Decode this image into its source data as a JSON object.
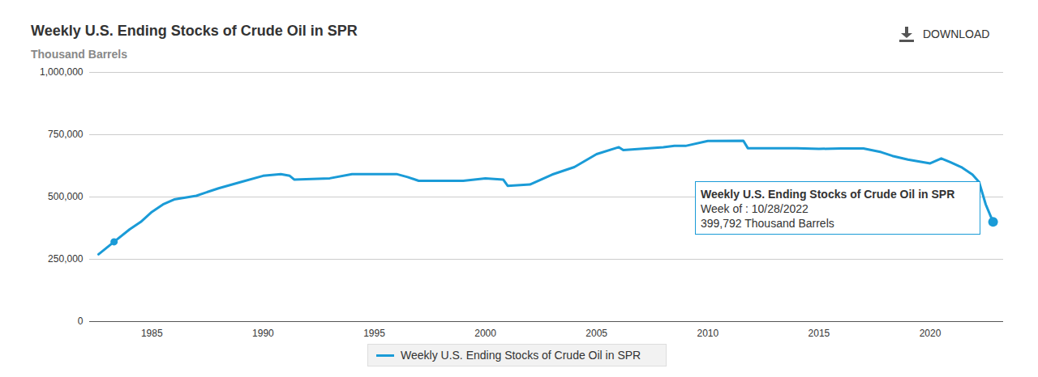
{
  "chart_data": {
    "type": "line",
    "title": "Weekly U.S. Ending Stocks of Crude Oil in SPR",
    "subtitle": "Thousand Barrels",
    "x": [
      1982.6,
      1983.3,
      1984.0,
      1984.5,
      1985.0,
      1985.5,
      1986.0,
      1987.0,
      1988.0,
      1989.0,
      1990.0,
      1990.8,
      1991.2,
      1991.4,
      1993.0,
      1994.0,
      1996.0,
      1996.5,
      1997.0,
      1999.0,
      2000.0,
      2000.8,
      2001.0,
      2002.0,
      2003.0,
      2004.0,
      2005.0,
      2006.0,
      2006.2,
      2008.0,
      2008.5,
      2009.0,
      2010.0,
      2011.6,
      2011.8,
      2014.0,
      2015.0,
      2016.0,
      2017.0,
      2017.8,
      2018.3,
      2019.0,
      2020.0,
      2020.5,
      2020.9,
      2021.4,
      2021.9,
      2022.2,
      2022.5,
      2022.83
    ],
    "series": [
      {
        "name": "Weekly U.S. Ending Stocks of Crude Oil in SPR",
        "color": "#1a9bd7",
        "values": [
          270000,
          320000,
          370000,
          400000,
          440000,
          470000,
          490000,
          505000,
          535000,
          560000,
          585000,
          592000,
          585000,
          570000,
          575000,
          592000,
          592000,
          580000,
          565000,
          565000,
          575000,
          570000,
          545000,
          550000,
          590000,
          620000,
          672000,
          700000,
          688000,
          700000,
          705000,
          705000,
          725000,
          726000,
          696000,
          696000,
          693000,
          695000,
          695000,
          680000,
          665000,
          650000,
          635000,
          655000,
          640000,
          620000,
          590000,
          560000,
          470000,
          399792
        ]
      }
    ],
    "xlim": [
      1982.2,
      2023.3
    ],
    "xticks": [
      1985,
      1990,
      1995,
      2000,
      2005,
      2010,
      2015,
      2020
    ],
    "ylim": [
      0,
      1000000
    ],
    "yticks": [
      {
        "value": 0,
        "label": "0"
      },
      {
        "value": 250000,
        "label": "250,000"
      },
      {
        "value": 500000,
        "label": "500,000"
      },
      {
        "value": 750000,
        "label": "750,000"
      },
      {
        "value": 1000000,
        "label": "1,000,000"
      }
    ],
    "grid": true,
    "legend": "bottom",
    "points": [
      {
        "x": 1983.3,
        "y": 320000
      }
    ],
    "annotations": [
      {
        "text": "DOWNLOAD"
      },
      {
        "lines": [
          "Weekly U.S. Ending Stocks of Crude Oil in SPR",
          "Week of : 10/28/2022",
          "399,792 Thousand Barrels"
        ],
        "x": 2022.83,
        "y": 399792
      }
    ]
  }
}
